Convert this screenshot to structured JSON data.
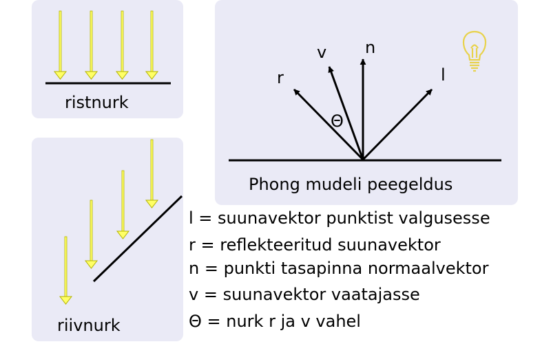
{
  "panels": {
    "perpendicular": {
      "caption": "ristnurk"
    },
    "oblique": {
      "caption": "riivnurk"
    },
    "phong": {
      "caption": "Phong mudeli peegeldus",
      "vector_labels": {
        "r": "r",
        "v": "v",
        "n": "n",
        "l": "l",
        "theta": "Θ"
      }
    }
  },
  "legend": [
    "l = suunavektor punktist valgusesse",
    "r = reflekteeritud suunavektor",
    "n = punkti tasapinna normaalvektor",
    "v = suunavektor vaatajasse",
    "Θ = nurk r ja v vahel"
  ],
  "colors": {
    "panel_bg": "#eaeaf6",
    "ray_fill": "#ffff66",
    "ray_stroke": "#b3b300",
    "line": "#000000",
    "bulb": "#e8d24a"
  },
  "icons": {
    "light": "lightbulb-icon"
  }
}
